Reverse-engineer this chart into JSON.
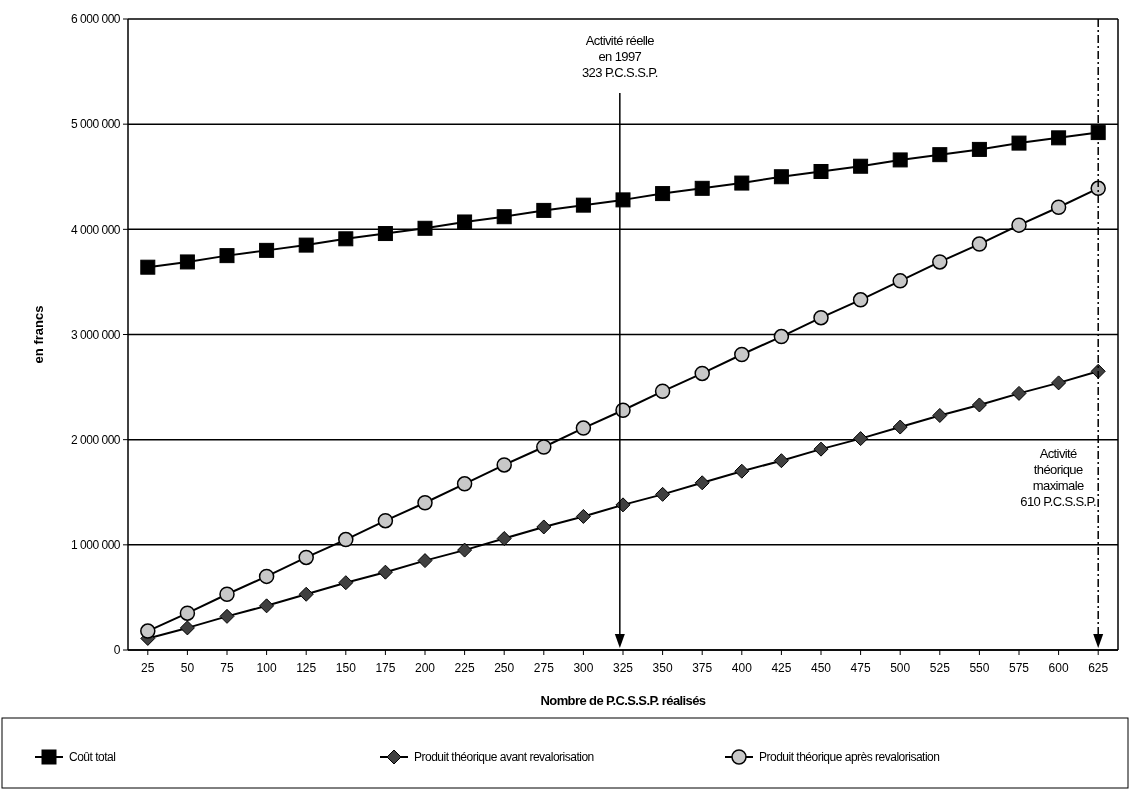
{
  "chart_data": {
    "type": "line",
    "xlabel": "Nombre de P.C.S.S.P. réalisés",
    "ylabel": "en francs",
    "x": [
      25,
      50,
      75,
      100,
      125,
      150,
      175,
      200,
      225,
      250,
      275,
      300,
      325,
      350,
      375,
      400,
      425,
      450,
      475,
      500,
      525,
      550,
      575,
      600,
      625
    ],
    "xlim": [
      12.5,
      637.5
    ],
    "xticks": [
      25,
      50,
      75,
      100,
      125,
      150,
      175,
      200,
      225,
      250,
      275,
      300,
      325,
      350,
      375,
      400,
      425,
      450,
      475,
      500,
      525,
      550,
      575,
      600,
      625
    ],
    "ylim": [
      0,
      6000000
    ],
    "yticks": [
      {
        "value": 0,
        "label": "0"
      },
      {
        "value": 1000000,
        "label": "1 000 000"
      },
      {
        "value": 2000000,
        "label": "2 000 000"
      },
      {
        "value": 3000000,
        "label": "3 000 000"
      },
      {
        "value": 4000000,
        "label": "4 000 000"
      },
      {
        "value": 5000000,
        "label": "5 000 000"
      },
      {
        "value": 6000000,
        "label": "6 000 000"
      }
    ],
    "grid": "y",
    "legend": "bottom",
    "line_style": "solid",
    "series": [
      {
        "name": "Coût total",
        "color": "#000000",
        "marker": "square",
        "values": [
          3640000,
          3690000,
          3750000,
          3800000,
          3850000,
          3910000,
          3960000,
          4010000,
          4070000,
          4120000,
          4180000,
          4230000,
          4280000,
          4340000,
          4390000,
          4440000,
          4500000,
          4550000,
          4600000,
          4660000,
          4710000,
          4760000,
          4820000,
          4870000,
          4920000
        ]
      },
      {
        "name": "Produit théorique avant revalorisation",
        "color": "#404040",
        "marker": "diamond",
        "values": [
          110000,
          210000,
          320000,
          420000,
          530000,
          640000,
          740000,
          850000,
          950000,
          1060000,
          1170000,
          1270000,
          1380000,
          1480000,
          1590000,
          1700000,
          1800000,
          1910000,
          2010000,
          2120000,
          2230000,
          2330000,
          2440000,
          2540000,
          2650000
        ]
      },
      {
        "name": "Produit théorique après revalorisation",
        "color": "#c8c8c8",
        "marker": "circle",
        "values": [
          180000,
          350000,
          530000,
          700000,
          880000,
          1050000,
          1230000,
          1400000,
          1580000,
          1760000,
          1930000,
          2110000,
          2280000,
          2460000,
          2630000,
          2810000,
          2980000,
          3160000,
          3330000,
          3510000,
          3690000,
          3860000,
          4040000,
          4210000,
          4390000
        ]
      }
    ],
    "ref_lines": [
      {
        "axis": "x",
        "value": 323,
        "label": "Activité réelle\nen 1997\n323 P.C.S.S.P.",
        "line_style": "solid"
      },
      {
        "axis": "x",
        "value": 625,
        "label": "Activité\nthéorique\nmaximale\n610 P.C.S.S.P.",
        "line_style": "dashed"
      }
    ]
  }
}
